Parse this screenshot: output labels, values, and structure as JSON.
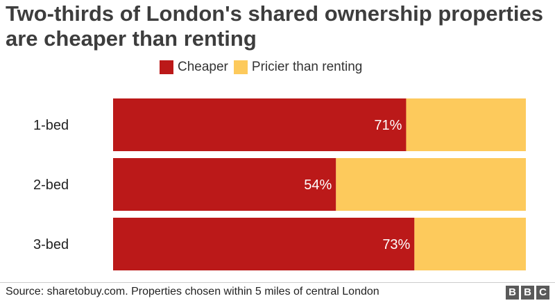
{
  "chart_data": {
    "type": "bar",
    "orientation": "horizontal",
    "stacked": true,
    "title": "Two-thirds of London's shared ownership properties are cheaper than renting",
    "categories": [
      "1-bed",
      "2-bed",
      "3-bed"
    ],
    "series": [
      {
        "name": "Cheaper",
        "values": [
          71,
          54,
          73
        ],
        "color": "#bb1919",
        "labels": [
          "71%",
          "54%",
          "73%"
        ]
      },
      {
        "name": "Pricier than renting",
        "values": [
          29,
          46,
          27
        ],
        "color": "#fdca5c"
      }
    ],
    "xlim": [
      0,
      100
    ],
    "legend": "top",
    "grid": false
  },
  "source": "Source: sharetobuy.com. Properties chosen within 5 miles of central London",
  "brand": {
    "letters": [
      "B",
      "B",
      "C"
    ]
  }
}
